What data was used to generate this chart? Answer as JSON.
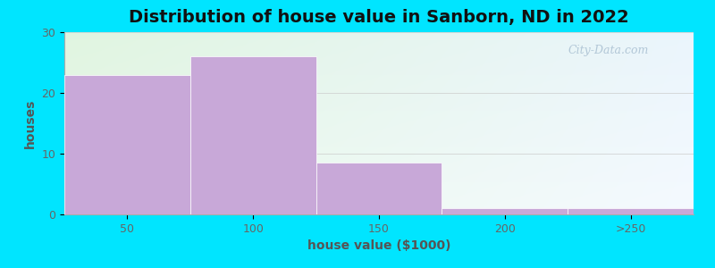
{
  "title": "Distribution of house value in Sanborn, ND in 2022",
  "xlabel": "house value ($1000)",
  "ylabel": "houses",
  "categories": [
    "50",
    "100",
    "150",
    "200",
    ">250"
  ],
  "values": [
    23,
    26,
    8.5,
    1,
    1
  ],
  "bar_color": "#c8a8d8",
  "bar_edgecolor": "#ffffff",
  "background_outer": "#00e5ff",
  "ylim": [
    0,
    30
  ],
  "yticks": [
    0,
    10,
    20,
    30
  ],
  "title_fontsize": 14,
  "label_fontsize": 10,
  "tick_fontsize": 9,
  "watermark": "City-Data.com",
  "grad_topleft": [
    0.88,
    0.96,
    0.88
  ],
  "grad_topright": [
    0.92,
    0.96,
    0.99
  ],
  "grad_bottomleft": [
    0.92,
    0.98,
    0.92
  ],
  "grad_bottomright": [
    0.96,
    0.98,
    1.0
  ]
}
